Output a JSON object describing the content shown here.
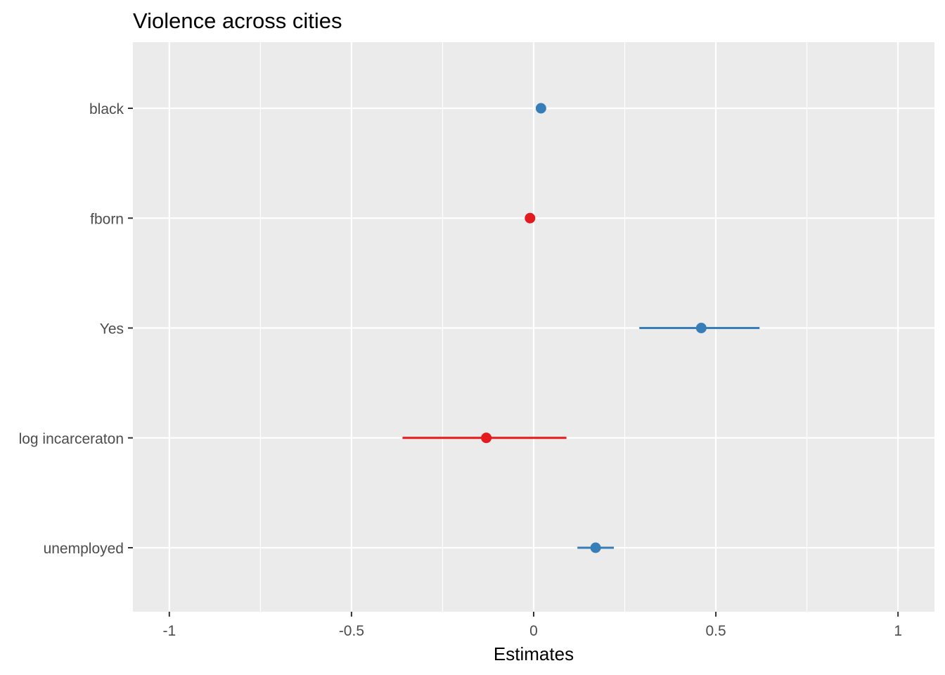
{
  "chart_data": {
    "type": "scatter",
    "title": "Violence across cities",
    "xlabel": "Estimates",
    "ylabel": "",
    "xlim": [
      -1.1,
      1.1
    ],
    "x_ticks": [
      {
        "value": -1,
        "label": "-1"
      },
      {
        "value": -0.5,
        "label": "-0.5"
      },
      {
        "value": 0,
        "label": "0"
      },
      {
        "value": 0.5,
        "label": "0.5"
      },
      {
        "value": 1,
        "label": "1"
      }
    ],
    "categories": [
      "black",
      "fborn",
      "Yes",
      "log incarceraton",
      "unemployed"
    ],
    "points": [
      {
        "term": "black",
        "estimate": 0.02,
        "conf_low": 0.01,
        "conf_high": 0.03
      },
      {
        "term": "fborn",
        "estimate": -0.01,
        "conf_low": -0.02,
        "conf_high": 0.0
      },
      {
        "term": "Yes",
        "estimate": 0.46,
        "conf_low": 0.29,
        "conf_high": 0.62
      },
      {
        "term": "log incarceraton",
        "estimate": -0.13,
        "conf_low": -0.36,
        "conf_high": 0.09
      },
      {
        "term": "unemployed",
        "estimate": 0.17,
        "conf_low": 0.12,
        "conf_high": 0.22
      }
    ],
    "colors": {
      "positive": "#377eb8",
      "negative": "#e41a1c",
      "panel": "#ebebeb",
      "grid": "#ffffff"
    },
    "grid": true,
    "legend": "none"
  }
}
